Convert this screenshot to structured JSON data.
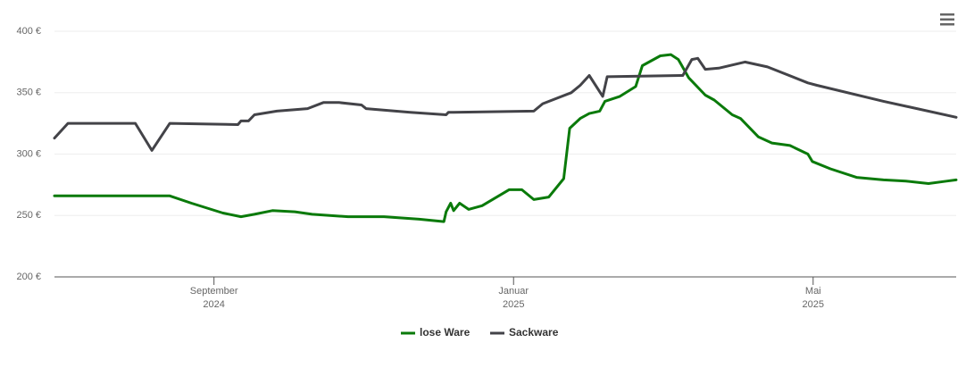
{
  "chart_data": {
    "type": "line",
    "xlim": [
      -0.13,
      11.91
    ],
    "xticks": [
      {
        "value": 2,
        "label": "September",
        "year": "2024"
      },
      {
        "value": 6,
        "label": "Januar",
        "year": "2025"
      },
      {
        "value": 10,
        "label": "Mai",
        "year": "2025"
      }
    ],
    "ylim": [
      200,
      400
    ],
    "yticks": [
      {
        "value": 200,
        "label": "200 €"
      },
      {
        "value": 250,
        "label": "250 €"
      },
      {
        "value": 300,
        "label": "300 €"
      },
      {
        "value": 350,
        "label": "350 €"
      },
      {
        "value": 400,
        "label": "400 €"
      }
    ],
    "grid": true,
    "legend": "bottom",
    "series": [
      {
        "name": "lose Ware",
        "color": "#0a7a0a",
        "x": [
          -0.13,
          1.41,
          1.7,
          2.12,
          2.36,
          2.54,
          2.78,
          3.08,
          3.31,
          3.79,
          4.27,
          4.74,
          5.07,
          5.1,
          5.16,
          5.2,
          5.28,
          5.4,
          5.58,
          5.94,
          6.11,
          6.27,
          6.47,
          6.67,
          6.75,
          6.89,
          7.01,
          7.15,
          7.22,
          7.42,
          7.63,
          7.72,
          7.96,
          8.1,
          8.2,
          8.34,
          8.56,
          8.68,
          8.92,
          9.03,
          9.27,
          9.45,
          9.69,
          9.93,
          9.99,
          10.23,
          10.58,
          10.94,
          11.24,
          11.54,
          11.78,
          11.91
        ],
        "values": [
          266,
          266,
          260,
          252,
          249,
          251,
          254,
          253,
          251,
          249,
          249,
          247,
          245,
          253,
          260,
          254,
          260,
          255,
          258,
          271,
          271,
          263,
          265,
          280,
          321,
          329,
          333,
          335,
          343,
          347,
          355,
          372,
          380,
          381,
          377,
          362,
          348,
          344,
          332,
          329,
          314,
          309,
          307,
          300,
          294,
          288,
          281,
          279,
          278,
          276,
          278,
          279
        ]
      },
      {
        "name": "Sackware",
        "color": "#434348",
        "x": [
          -0.13,
          0.05,
          0.95,
          1.17,
          1.41,
          2.32,
          2.36,
          2.46,
          2.54,
          2.84,
          3.25,
          3.46,
          3.67,
          3.97,
          4.03,
          4.62,
          5.1,
          5.13,
          6.27,
          6.39,
          6.77,
          6.89,
          7.01,
          7.19,
          7.25,
          8.26,
          8.38,
          8.46,
          8.56,
          8.74,
          9.09,
          9.39,
          9.93,
          10.05,
          10.94,
          11.91
        ],
        "values": [
          313,
          325,
          325,
          303,
          325,
          324,
          327,
          327,
          332,
          335,
          337,
          342,
          342,
          340,
          337,
          334,
          332,
          334,
          335,
          341,
          350,
          356,
          364,
          347,
          363,
          364,
          377,
          378,
          369,
          370,
          375,
          371,
          358,
          356,
          343,
          330
        ]
      }
    ]
  }
}
